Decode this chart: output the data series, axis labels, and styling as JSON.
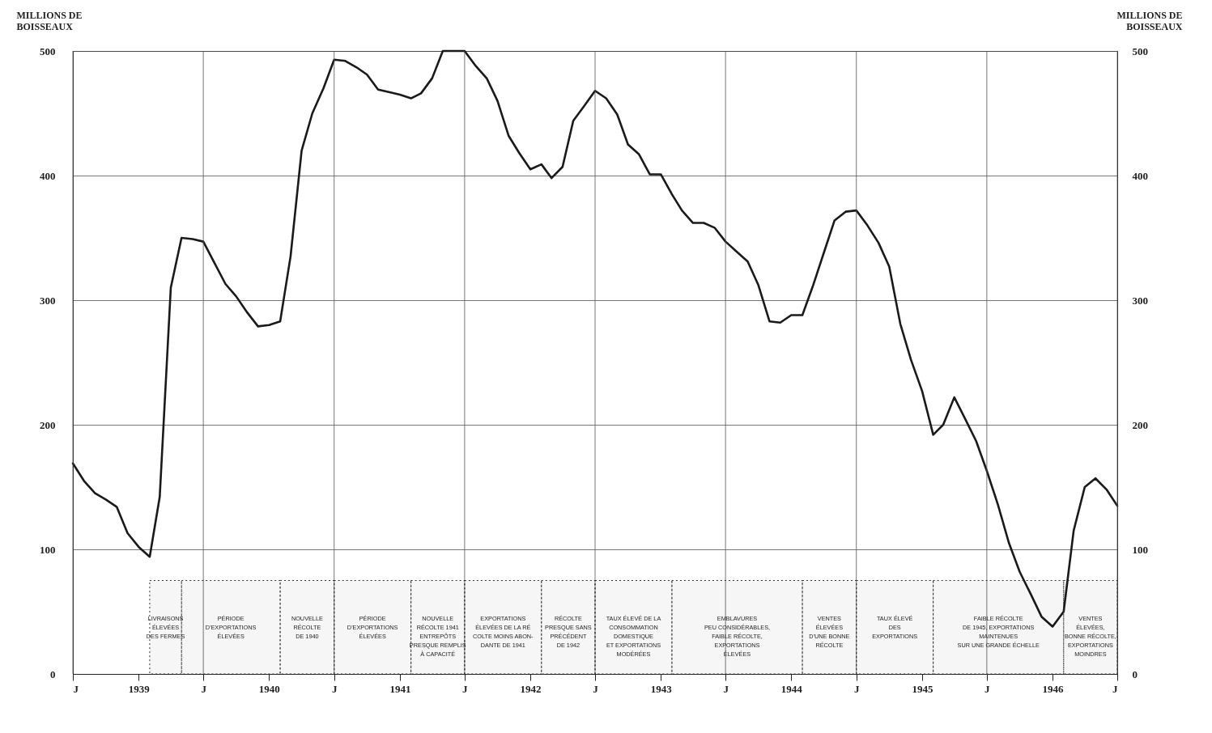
{
  "chart_data": {
    "type": "line",
    "ylabel": "MILLIONS DE\nBOISSEAUX",
    "y2label": "MILLIONS DE\nBOISSEAUX",
    "x": [
      "1938-07",
      "1938-08",
      "1938-09",
      "1938-10",
      "1938-11",
      "1938-12",
      "1939-01",
      "1939-02",
      "1939-03",
      "1939-04",
      "1939-05",
      "1939-06",
      "1939-07",
      "1939-08",
      "1939-09",
      "1939-10",
      "1939-11",
      "1939-12",
      "1940-01",
      "1940-02",
      "1940-03",
      "1940-04",
      "1940-05",
      "1940-06",
      "1940-07",
      "1940-08",
      "1940-09",
      "1940-10",
      "1940-11",
      "1940-12",
      "1941-01",
      "1941-02",
      "1941-03",
      "1941-04",
      "1941-05",
      "1941-06",
      "1941-07",
      "1941-08",
      "1941-09",
      "1941-10",
      "1941-11",
      "1941-12",
      "1942-01",
      "1942-02",
      "1942-03",
      "1942-04",
      "1942-05",
      "1942-06",
      "1942-07",
      "1942-08",
      "1942-09",
      "1942-10",
      "1942-11",
      "1942-12",
      "1943-01",
      "1943-02",
      "1943-03",
      "1943-04",
      "1943-05",
      "1943-06",
      "1943-07",
      "1943-08",
      "1943-09",
      "1943-10",
      "1943-11",
      "1943-12",
      "1944-01",
      "1944-02",
      "1944-03",
      "1944-04",
      "1944-05",
      "1944-06",
      "1944-07",
      "1944-08",
      "1944-09",
      "1944-10",
      "1944-11",
      "1944-12",
      "1945-01",
      "1945-02",
      "1945-03",
      "1945-04",
      "1945-05",
      "1945-06",
      "1945-07",
      "1945-08",
      "1945-09",
      "1945-10",
      "1945-11",
      "1945-12",
      "1946-01",
      "1946-02",
      "1946-03",
      "1946-04",
      "1946-05",
      "1946-06",
      "1946-07"
    ],
    "series": [
      {
        "color": "#1a1a1a",
        "values": [
          169,
          155,
          145,
          140,
          134,
          113,
          102,
          94,
          142,
          310,
          350,
          349,
          347,
          330,
          313,
          303,
          290,
          279,
          280,
          283,
          335,
          420,
          450,
          470,
          493,
          492,
          487,
          481,
          469,
          467,
          465,
          462,
          466,
          478,
          500,
          500,
          500,
          488,
          478,
          460,
          432,
          418,
          405,
          409,
          398,
          407,
          444,
          456,
          468,
          462,
          449,
          425,
          417,
          401,
          401,
          385,
          372,
          362,
          362,
          358,
          347,
          339,
          331,
          312,
          283,
          282,
          288,
          288,
          311,
          338,
          364,
          371,
          372,
          360,
          346,
          327,
          281,
          252,
          227,
          192,
          200,
          222,
          205,
          187,
          163,
          136,
          105,
          82,
          64,
          46,
          38,
          50,
          115,
          150,
          157,
          148,
          135
        ]
      }
    ],
    "xlim": [
      "1938-07",
      "1946-07"
    ],
    "xticks": [
      {
        "value": "1938-07",
        "label": "J"
      },
      {
        "value": "1939-01",
        "label": "1939"
      },
      {
        "value": "1939-07",
        "label": "J"
      },
      {
        "value": "1940-01",
        "label": "1940"
      },
      {
        "value": "1940-07",
        "label": "J"
      },
      {
        "value": "1941-01",
        "label": "1941"
      },
      {
        "value": "1941-07",
        "label": "J"
      },
      {
        "value": "1942-01",
        "label": "1942"
      },
      {
        "value": "1942-07",
        "label": "J"
      },
      {
        "value": "1943-01",
        "label": "1943"
      },
      {
        "value": "1943-07",
        "label": "J"
      },
      {
        "value": "1944-01",
        "label": "1944"
      },
      {
        "value": "1944-07",
        "label": "J"
      },
      {
        "value": "1945-01",
        "label": "1945"
      },
      {
        "value": "1945-07",
        "label": "J"
      },
      {
        "value": "1946-01",
        "label": "1946"
      },
      {
        "value": "1946-07",
        "label": "J"
      }
    ],
    "ylim": [
      0,
      500
    ],
    "yticks": [
      0,
      100,
      200,
      300,
      400,
      500
    ],
    "y2lim": [
      0,
      500
    ],
    "y2ticks": [
      0,
      100,
      200,
      300,
      400,
      500
    ],
    "grid": true,
    "bands": [
      {
        "axis": "x",
        "from": "1939-02",
        "to": "1939-05",
        "label": "LIVRAISONS\nÉLEVÉES\nDES FERMES"
      },
      {
        "axis": "x",
        "from": "1939-05",
        "to": "1940-02",
        "label": "PÉRIODE\nD'EXPORTATIONS\nÉLEVÉES"
      },
      {
        "axis": "x",
        "from": "1940-02",
        "to": "1940-07",
        "label": "NOUVELLE\nRÉCOLTE\nDE 1940"
      },
      {
        "axis": "x",
        "from": "1940-07",
        "to": "1941-02",
        "label": "PÉRIODE\nD'EXPORTATIONS\nÉLEVÉES"
      },
      {
        "axis": "x",
        "from": "1941-02",
        "to": "1941-07",
        "label": "NOUVELLE\nRÉCOLTE 1941\nENTREPÔTS\nPRESQUE REMPLIS\nÀ CAPACITÉ"
      },
      {
        "axis": "x",
        "from": "1941-07",
        "to": "1942-02",
        "label": "EXPORTATIONS\nÉLEVÉES DE LA RÉ\nCOLTE MOINS ABON-\nDANTE DE 1941"
      },
      {
        "axis": "x",
        "from": "1942-02",
        "to": "1942-07",
        "label": "RÉCOLTE\nPRESQUE SANS\nPRÉCÉDENT\nDE 1942"
      },
      {
        "axis": "x",
        "from": "1942-07",
        "to": "1943-02",
        "label": "TAUX ÉLEVÉ DE LA\nCONSOMMATION\nDOMESTIQUE\nET EXPORTATIONS\nMODÉRÉES"
      },
      {
        "axis": "x",
        "from": "1943-02",
        "to": "1944-02",
        "label": "EMBLAVURES\nPEU CONSIDÉRABLES,\nFAIBLE RÉCOLTE,\nEXPORTATIONS\nÉLEVÉES"
      },
      {
        "axis": "x",
        "from": "1944-02",
        "to": "1944-07",
        "label": "VENTES\nÉLEVÉES\nD'UNE BONNE\nRÉCOLTE"
      },
      {
        "axis": "x",
        "from": "1944-07",
        "to": "1945-02",
        "label": "TAUX ÉLEVÉ\nDES\nEXPORTATIONS"
      },
      {
        "axis": "x",
        "from": "1945-02",
        "to": "1946-02",
        "label": "FAIBLE RÉCOLTE\nDE 1945, EXPORTATIONS\nMAINTENUES\nSUR UNE GRANDE ÉCHELLE"
      },
      {
        "axis": "x",
        "from": "1946-02",
        "to": "1946-07",
        "label": "VENTES\nÉLEVÉES,\nBONNE RÉCOLTE,\nEXPORTATIONS\nMOINDRES"
      }
    ]
  }
}
